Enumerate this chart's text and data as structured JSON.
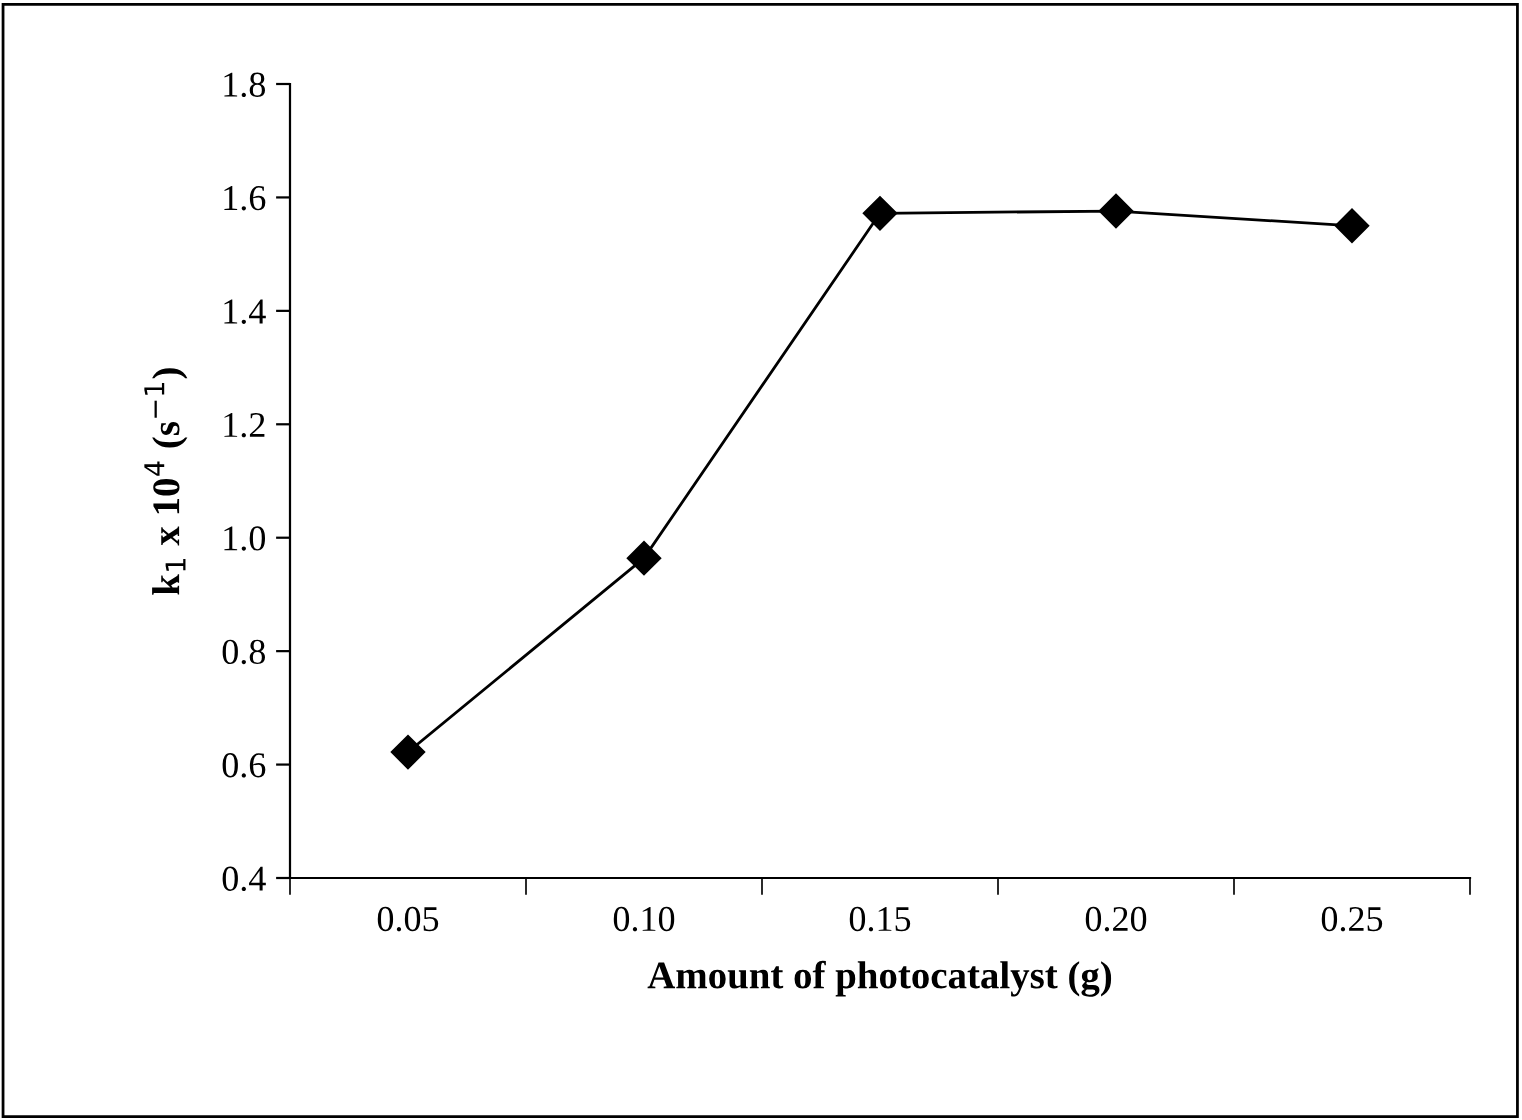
{
  "chart_data": {
    "type": "line",
    "xlabel": "Amount of photocatalyst (g)",
    "ylabel": "k$_{1}$ x 10$^{4}$ (s$^{−1}$)",
    "categories": [
      "0.05",
      "0.10",
      "0.15",
      "0.20",
      "0.25"
    ],
    "series": [
      {
        "color": "#000000",
        "values": [
          0.622,
          0.964,
          1.572,
          1.576,
          1.55
        ]
      }
    ],
    "ylim": [
      0.4,
      1.8
    ],
    "yticks": [
      {
        "value": 0.4,
        "label": "0.4"
      },
      {
        "value": 0.6,
        "label": "0.6"
      },
      {
        "value": 0.8,
        "label": "0.8"
      },
      {
        "value": 1.0,
        "label": "1.0"
      },
      {
        "value": 1.2,
        "label": "1.2"
      },
      {
        "value": 1.4,
        "label": "1.4"
      },
      {
        "value": 1.6,
        "label": "1.6"
      },
      {
        "value": 1.8,
        "label": "1.8"
      }
    ],
    "grid": false,
    "marker": "diamond",
    "line_style": "solid"
  }
}
